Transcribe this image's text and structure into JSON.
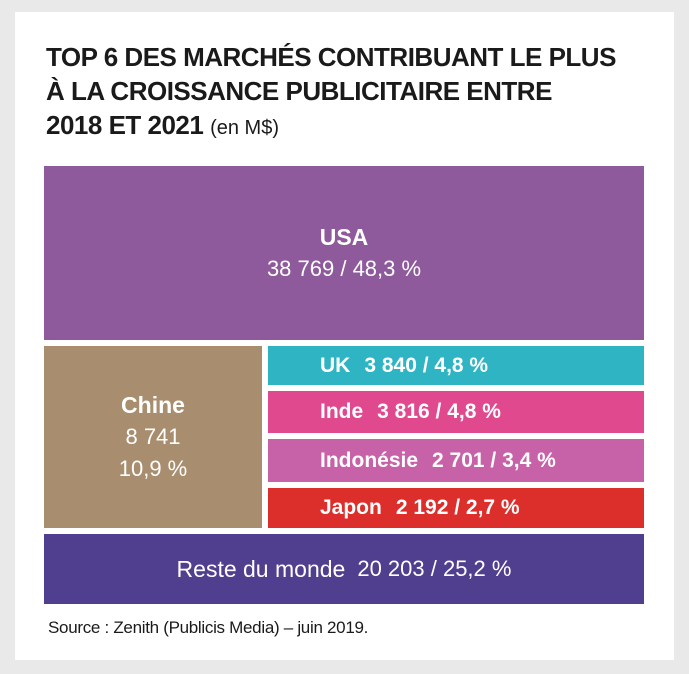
{
  "title": {
    "line1": "TOP 6 DES MARCHÉS CONTRIBUANT LE PLUS",
    "line2": "À LA CROISSANCE PUBLICITAIRE ENTRE",
    "line3": "2018 ET 2021",
    "unit": "(en M$)"
  },
  "chart_data": {
    "type": "treemap",
    "title": "TOP 6 DES MARCHÉS CONTRIBUANT LE PLUS À LA CROISSANCE PUBLICITAIRE ENTRE 2018 ET 2021",
    "unit": "(en M$)",
    "items": [
      {
        "name": "USA",
        "value": 38769,
        "label": "38 769 / 48,3 %",
        "share_pct": 48.3,
        "color": "#8e5a9c"
      },
      {
        "name": "Chine",
        "value": 8741,
        "value_label": "8 741",
        "share_label": "10,9 %",
        "share_pct": 10.9,
        "color": "#a88e6e"
      },
      {
        "name": "UK",
        "value": 3840,
        "label": "3 840 / 4,8 %",
        "share_pct": 4.8,
        "color": "#2fb4c4"
      },
      {
        "name": "Inde",
        "value": 3816,
        "label": "3 816 / 4,8 %",
        "share_pct": 4.8,
        "color": "#e0498e"
      },
      {
        "name": "Indonésie",
        "value": 2701,
        "label": "2 701 / 3,4 %",
        "share_pct": 3.4,
        "color": "#c761a8"
      },
      {
        "name": "Japon",
        "value": 2192,
        "label": "2 192 / 2,7 %",
        "share_pct": 2.7,
        "color": "#dc2f2c"
      },
      {
        "name": "Reste du monde",
        "value": 20203,
        "label": "20 203 / 25,2 %",
        "share_pct": 25.2,
        "color": "#4f3f8e"
      }
    ]
  },
  "source": "Source : Zenith (Publicis Media) – juin 2019."
}
